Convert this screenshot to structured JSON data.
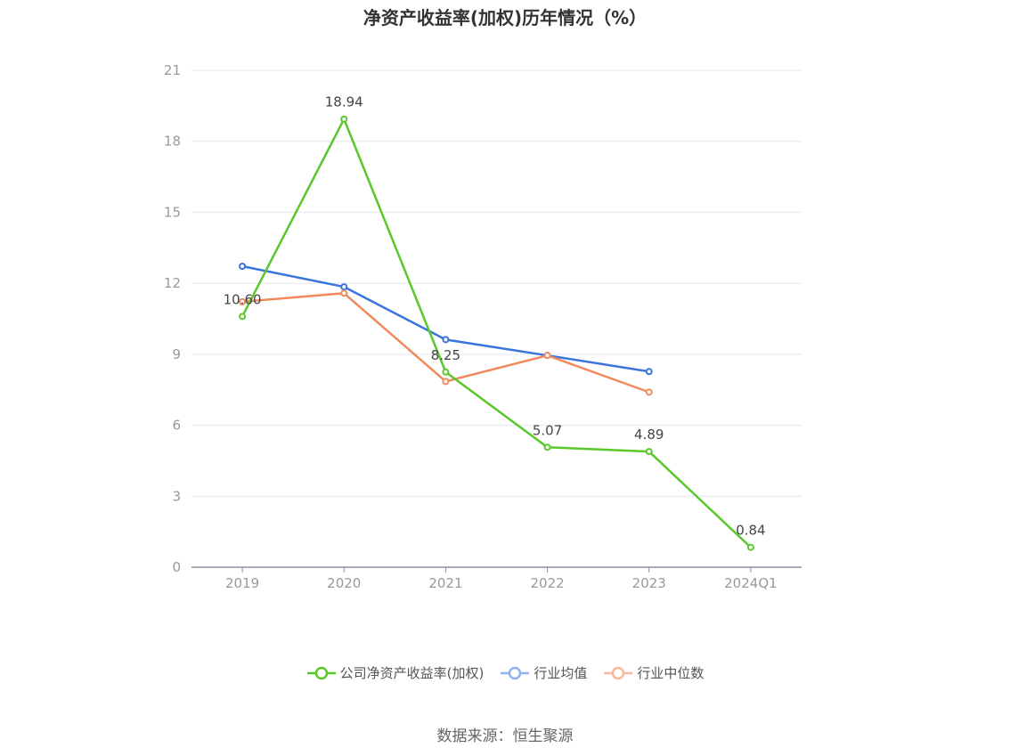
{
  "chart_data": {
    "type": "line",
    "title": "净资产收益率(加权)历年情况（%）",
    "categories": [
      "2019",
      "2020",
      "2021",
      "2022",
      "2023",
      "2024Q1"
    ],
    "ylim": [
      0,
      21
    ],
    "yticks": [
      0,
      3,
      6,
      9,
      12,
      15,
      18,
      21
    ],
    "grid": true,
    "legend_position": "bottom",
    "series": [
      {
        "name": "公司净资产收益率(加权)",
        "color": "#5ac72a",
        "values": [
          10.6,
          18.94,
          8.25,
          5.07,
          4.89,
          0.84
        ],
        "labels": [
          "10.60",
          "18.94",
          "8.25",
          "5.07",
          "4.89",
          "0.84"
        ]
      },
      {
        "name": "行业均值",
        "color": "#3a75dd",
        "values": [
          12.72,
          11.85,
          9.62,
          8.95,
          8.27,
          null
        ],
        "legend_color": "#8fb4ef"
      },
      {
        "name": "行业中位数",
        "color": "#f08a5d",
        "values": [
          11.22,
          11.58,
          7.85,
          8.95,
          7.4,
          null
        ],
        "legend_color": "#f6b89e"
      }
    ]
  },
  "source": "数据来源：恒生聚源"
}
